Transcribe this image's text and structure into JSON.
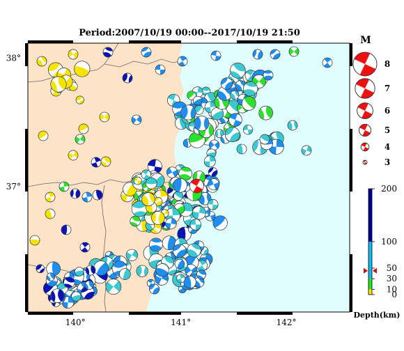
{
  "title": "Period:2007/10/19 00:00--2017/10/19 21:50",
  "map": {
    "lat_labels": [
      {
        "text": "38°",
        "lat": 38.0
      },
      {
        "text": "37°",
        "lat": 37.0
      }
    ],
    "lon_labels": [
      {
        "text": "140°",
        "lon": 140.0
      },
      {
        "text": "141°",
        "lon": 141.0
      },
      {
        "text": "142°",
        "lon": 142.0
      }
    ],
    "lon_range": [
      139.55,
      142.6
    ],
    "lat_range": [
      36.02,
      38.11
    ],
    "land_color": "#fde4c8",
    "sea_color": "#e0fefe",
    "highlight_event": {
      "lon": 141.15,
      "lat": 37.0,
      "magnitude": 4.3,
      "depth_km": 45
    }
  },
  "magnitude_legend": {
    "heading": "M",
    "items": [
      {
        "label": "8",
        "m": 8
      },
      {
        "label": "7",
        "m": 7
      },
      {
        "label": "6",
        "m": 6
      },
      {
        "label": "5",
        "m": 5
      },
      {
        "label": "4",
        "m": 4
      },
      {
        "label": "3",
        "m": 3
      }
    ],
    "color": "#ee1111"
  },
  "depth_scale": {
    "title": "Depth(km)",
    "ticks": [
      "0",
      "10",
      "30",
      "50",
      "100",
      "200"
    ],
    "tick_values": [
      0,
      10,
      30,
      50,
      100,
      200
    ],
    "marker_value": 45,
    "bands": [
      {
        "from": 0,
        "to": 10,
        "color": "#ffe000"
      },
      {
        "from": 10,
        "to": 30,
        "color": "#22e822"
      },
      {
        "from": 30,
        "to": 100,
        "color": "#18b8f0"
      },
      {
        "from": 100,
        "to": 200,
        "color": "#000099"
      }
    ]
  },
  "colors": {
    "shallow": "#f5e300",
    "mid": "#2ee02e",
    "teal": "#3cc8d0",
    "blue": "#1e8ef0",
    "deep": "#0a14b4",
    "highlight": "#ee1111"
  }
}
